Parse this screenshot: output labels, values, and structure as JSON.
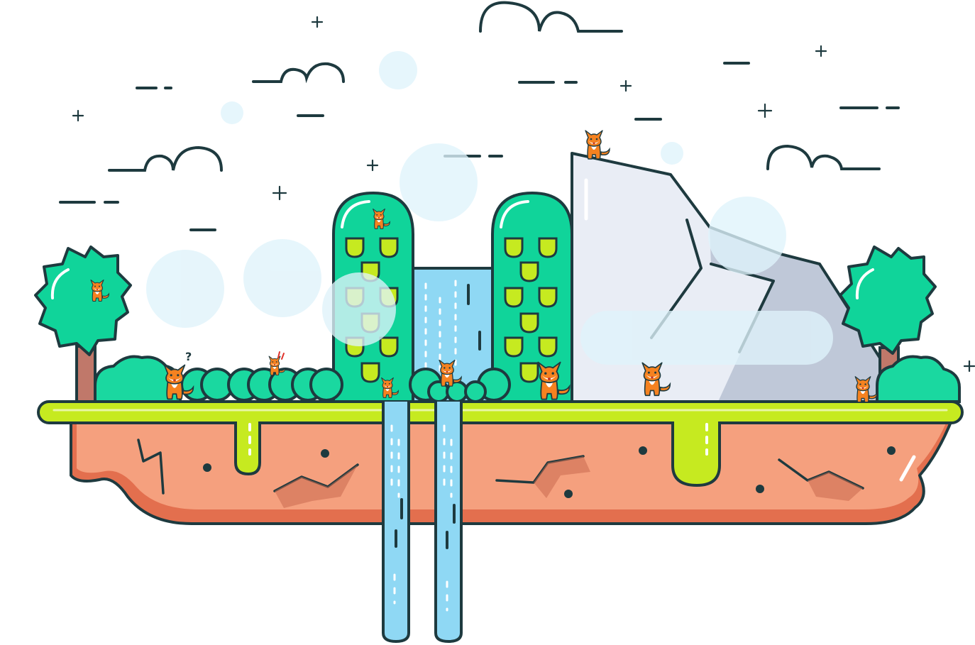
{
  "scene": {
    "type": "hidden-object-game-scene",
    "colors": {
      "outline": "#1e3a3f",
      "tree_green": "#10d49a",
      "tree_green_dark": "#0aa87a",
      "bush_green": "#1ad8a0",
      "grass_lime": "#c6ea20",
      "soil": "#f5a07e",
      "soil_shadow": "#e36f4e",
      "water": "#8fd8f4",
      "rock": "#e9edf5",
      "rock_shadow": "#bfc8d8",
      "bubble": "#dff3fb",
      "fox_orange": "#f58220",
      "fox_white": "#ffffff"
    },
    "icons": [
      "fox-icon",
      "question-mark-icon",
      "exclamation-icon",
      "sparkle-plus-icon"
    ],
    "foxes_visible": 10,
    "question_glyph": "?"
  }
}
